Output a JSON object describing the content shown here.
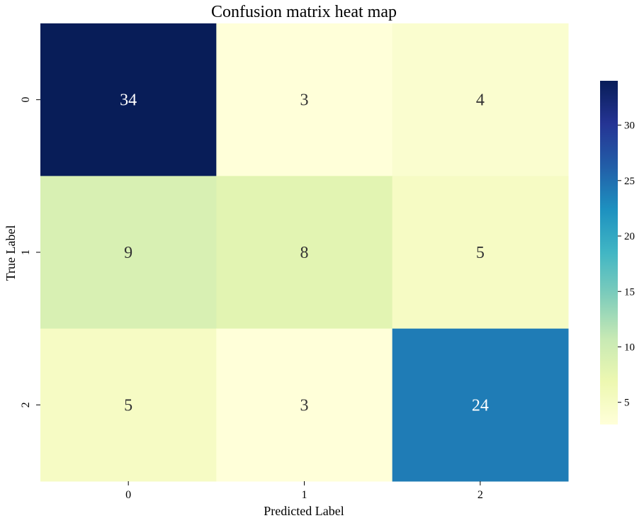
{
  "chart_data": {
    "type": "heatmap",
    "title": "Confusion matrix heat map",
    "xlabel": "Predicted Label",
    "ylabel": "True Label",
    "x_categories": [
      "0",
      "1",
      "2"
    ],
    "y_categories": [
      "0",
      "1",
      "2"
    ],
    "values": [
      [
        34,
        3,
        4
      ],
      [
        9,
        8,
        5
      ],
      [
        5,
        3,
        24
      ]
    ],
    "colormap": "YlGnBu",
    "colorbar": {
      "vmin": 3,
      "vmax": 34,
      "ticks": [
        5,
        10,
        15,
        20,
        25,
        30
      ],
      "tick_labels": [
        "5",
        "10",
        "15",
        "20",
        "25",
        "30"
      ]
    },
    "colors": {
      "annotation_light": "#ffffff",
      "annotation_dark": "#333333",
      "ramp": [
        "#ffffd9",
        "#edf8b1",
        "#c7e9b4",
        "#7fcdbb",
        "#41b6c4",
        "#1d91c0",
        "#225ea8",
        "#253494",
        "#081d58"
      ]
    }
  }
}
